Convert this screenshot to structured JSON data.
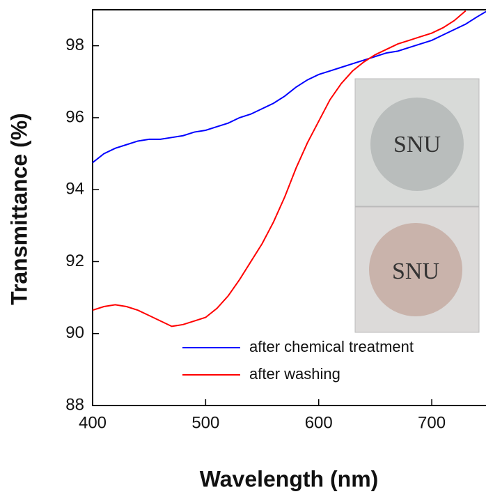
{
  "chart_data": {
    "type": "line",
    "x_label": "Wavelength (nm)",
    "y_label": "Transmittance (%)",
    "xlim": [
      400,
      748
    ],
    "ylim": [
      88,
      99
    ],
    "xticks": [
      400,
      500,
      600,
      700
    ],
    "yticks": [
      88,
      90,
      92,
      94,
      96,
      98
    ],
    "x": [
      400,
      410,
      420,
      430,
      440,
      450,
      460,
      470,
      480,
      490,
      500,
      510,
      520,
      530,
      540,
      550,
      560,
      570,
      580,
      590,
      600,
      610,
      620,
      630,
      640,
      650,
      660,
      670,
      680,
      690,
      700,
      710,
      720,
      730,
      740,
      748
    ],
    "series": [
      {
        "name": "after chemical treatment",
        "color": "#0000ff",
        "values": [
          94.75,
          95.0,
          95.15,
          95.25,
          95.35,
          95.4,
          95.4,
          95.45,
          95.5,
          95.6,
          95.65,
          95.75,
          95.85,
          96.0,
          96.1,
          96.25,
          96.4,
          96.6,
          96.85,
          97.05,
          97.2,
          97.3,
          97.4,
          97.5,
          97.6,
          97.7,
          97.8,
          97.85,
          97.95,
          98.05,
          98.15,
          98.3,
          98.45,
          98.6,
          98.8,
          98.95
        ]
      },
      {
        "name": "after washing",
        "color": "#ff0000",
        "values": [
          90.65,
          90.75,
          90.8,
          90.75,
          90.65,
          90.5,
          90.35,
          90.2,
          90.25,
          90.35,
          90.45,
          90.7,
          91.05,
          91.5,
          92.0,
          92.5,
          93.1,
          93.8,
          94.6,
          95.3,
          95.9,
          96.5,
          96.95,
          97.3,
          97.55,
          97.75,
          97.9,
          98.05,
          98.15,
          98.25,
          98.35,
          98.5,
          98.7,
          98.97,
          null,
          null
        ]
      }
    ],
    "legend": "lower right",
    "inset": {
      "labels": [
        "SNU",
        "SNU"
      ]
    }
  }
}
